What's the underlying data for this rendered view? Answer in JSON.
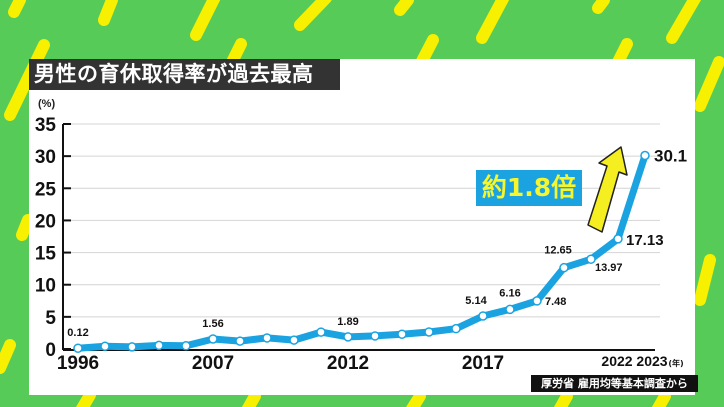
{
  "title": "男性の育休取得率が過去最高",
  "unit_label": "(%)",
  "year_unit": "(年)",
  "annotation": "約1.8倍",
  "source": "厚労省 雇用均等基本調査から",
  "colors": {
    "background": "#57cb57",
    "stripe": "#f7f000",
    "line": "#1aa3e0",
    "arrow": "#f5ef22",
    "title_bg": "#333333",
    "annotation_bg": "#1aa3e0",
    "annotation_text": "#f7f52c"
  },
  "chart_data": {
    "type": "line",
    "title": "男性の育休取得率が過去最高",
    "xlabel": "(年)",
    "ylabel": "(%)",
    "ylim": [
      0,
      35
    ],
    "yticks": [
      0,
      5,
      10,
      15,
      20,
      25,
      30,
      35
    ],
    "xtick_labels": [
      "1996",
      "2007",
      "2012",
      "2017",
      "2022",
      "2023"
    ],
    "grid": true,
    "x": [
      1996,
      1999,
      2002,
      2004,
      2005,
      2007,
      2008,
      2009,
      2010,
      2011,
      2012,
      2013,
      2014,
      2015,
      2016,
      2017,
      2018,
      2019,
      2020,
      2021,
      2022,
      2023
    ],
    "series": [
      {
        "name": "男性の育休取得率",
        "values": [
          0.12,
          0.42,
          0.33,
          0.56,
          0.5,
          1.56,
          1.23,
          1.72,
          1.38,
          2.63,
          1.89,
          2.03,
          2.3,
          2.65,
          3.16,
          5.14,
          6.16,
          7.48,
          12.65,
          13.97,
          17.13,
          30.1
        ]
      }
    ],
    "data_labels": [
      {
        "x": 1996,
        "label": "0.12"
      },
      {
        "x": 2007,
        "label": "1.56"
      },
      {
        "x": 2012,
        "label": "1.89"
      },
      {
        "x": 2017,
        "label": "5.14"
      },
      {
        "x": 2018,
        "label": "6.16"
      },
      {
        "x": 2019,
        "label": "7.48"
      },
      {
        "x": 2020,
        "label": "12.65"
      },
      {
        "x": 2021,
        "label": "13.97"
      },
      {
        "x": 2022,
        "label": "17.13"
      },
      {
        "x": 2023,
        "label": "30.1"
      }
    ],
    "annotations": [
      "約1.8倍"
    ]
  }
}
